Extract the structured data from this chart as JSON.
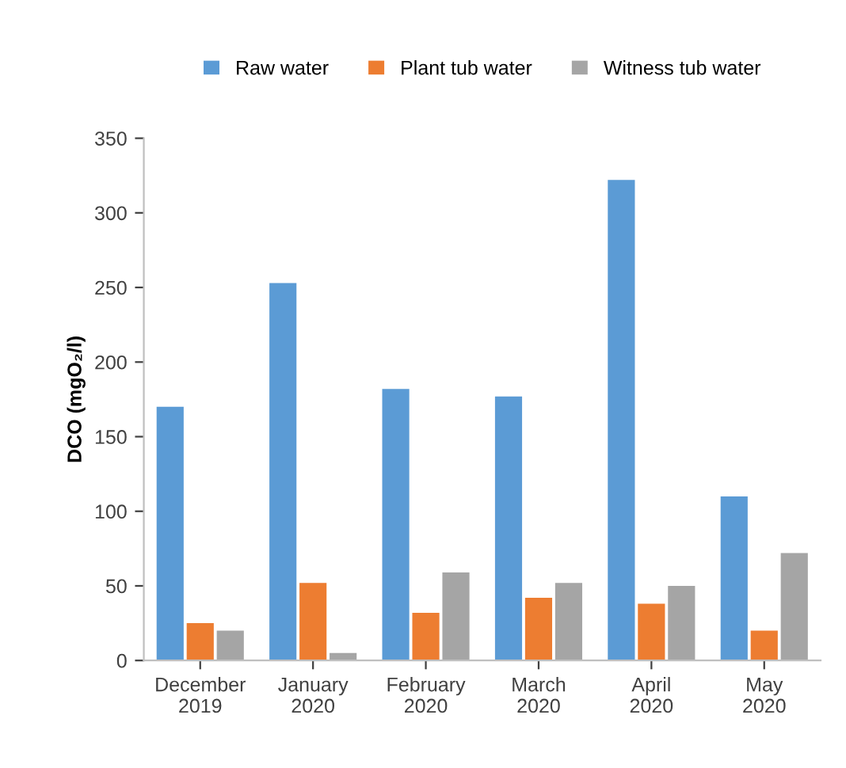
{
  "chart_data": {
    "type": "bar",
    "ylabel": "DCO (mgO₂/l)",
    "categories": [
      "December 2019",
      "January 2020",
      "February 2020",
      "March 2020",
      "April 2020",
      "May 2020"
    ],
    "series": [
      {
        "name": "Raw water",
        "color": "#5b9bd5",
        "values": [
          170,
          253,
          182,
          177,
          322,
          110
        ]
      },
      {
        "name": "Plant tub water",
        "color": "#ed7d31",
        "values": [
          25,
          52,
          32,
          42,
          38,
          20
        ]
      },
      {
        "name": "Witness tub water",
        "color": "#a5a5a5",
        "values": [
          20,
          5,
          59,
          52,
          50,
          72
        ]
      }
    ],
    "ylim": [
      0,
      350
    ],
    "yticks": [
      0,
      50,
      100,
      150,
      200,
      250,
      300,
      350
    ],
    "grid": false,
    "legend": "top"
  }
}
